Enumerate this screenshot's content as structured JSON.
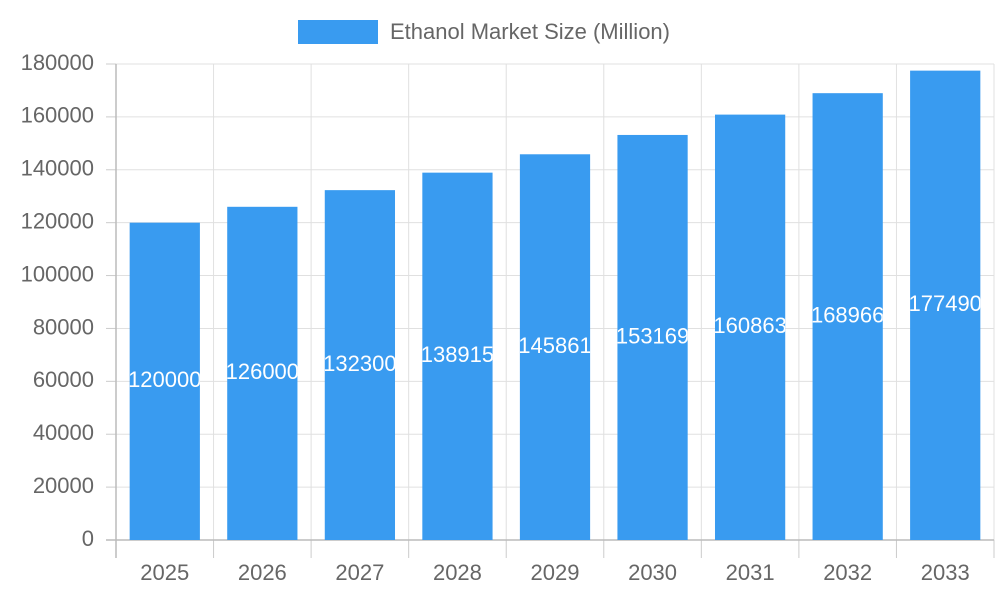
{
  "chart_data": {
    "type": "bar",
    "legend_position": "top",
    "categories": [
      "2025",
      "2026",
      "2027",
      "2028",
      "2029",
      "2030",
      "2031",
      "2032",
      "2033"
    ],
    "series": [
      {
        "name": "Ethanol Market Size (Million)",
        "color": "#399bf0",
        "values": [
          120000,
          126000,
          132300,
          138915,
          145861,
          153169,
          160863,
          168966,
          177490
        ]
      }
    ],
    "ylim": [
      0,
      180000
    ],
    "yticks": [
      0,
      20000,
      40000,
      60000,
      80000,
      100000,
      120000,
      140000,
      160000,
      180000
    ],
    "grid": true
  }
}
